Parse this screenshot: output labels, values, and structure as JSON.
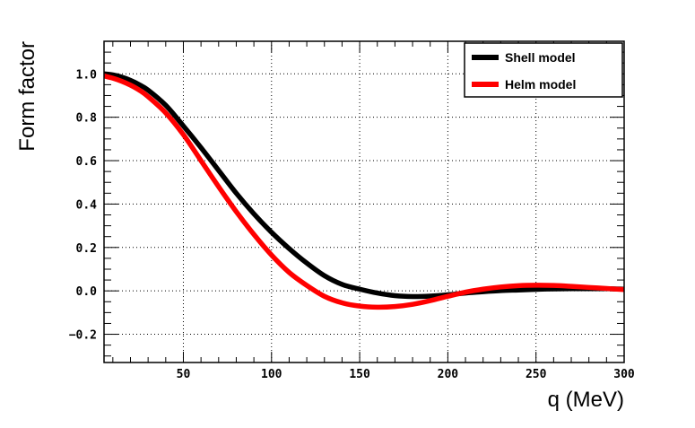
{
  "chart_data": {
    "type": "line",
    "title": "",
    "xlabel": "q (MeV)",
    "ylabel": "Form factor",
    "xlim": [
      5,
      300
    ],
    "ylim": [
      -0.33,
      1.15
    ],
    "grid": true,
    "legend_placement": "top-right",
    "x_ticks": [
      50,
      100,
      150,
      200,
      250,
      300
    ],
    "x_tick_labels": [
      "50",
      "100",
      "150",
      "200",
      "250",
      "300"
    ],
    "y_ticks": [
      -0.2,
      0.0,
      0.2,
      0.4,
      0.6,
      0.8,
      1.0
    ],
    "y_tick_labels": [
      "−0.2",
      "0.0",
      "0.2",
      "0.4",
      "0.6",
      "0.8",
      "1.0"
    ],
    "series": [
      {
        "name": "Shell model",
        "color": "#000000",
        "x": [
          5,
          10,
          15,
          20,
          25,
          30,
          40,
          50,
          60,
          70,
          80,
          90,
          100,
          110,
          120,
          130,
          140,
          150,
          160,
          170,
          180,
          190,
          200,
          210,
          220,
          230,
          240,
          250,
          260,
          270,
          280,
          290,
          300
        ],
        "y": [
          1.0,
          0.995,
          0.985,
          0.97,
          0.95,
          0.925,
          0.855,
          0.76,
          0.66,
          0.555,
          0.45,
          0.355,
          0.27,
          0.195,
          0.128,
          0.07,
          0.03,
          0.008,
          -0.01,
          -0.022,
          -0.026,
          -0.024,
          -0.018,
          -0.01,
          -0.004,
          0.001,
          0.004,
          0.007,
          0.009,
          0.01,
          0.01,
          0.01,
          0.008
        ]
      },
      {
        "name": "Helm model",
        "color": "#ff0000",
        "x": [
          5,
          10,
          15,
          20,
          25,
          30,
          40,
          50,
          60,
          70,
          80,
          90,
          100,
          110,
          120,
          130,
          140,
          150,
          160,
          170,
          180,
          190,
          200,
          210,
          220,
          230,
          240,
          250,
          260,
          270,
          280,
          290,
          300
        ],
        "y": [
          0.99,
          0.98,
          0.966,
          0.948,
          0.925,
          0.895,
          0.82,
          0.72,
          0.6,
          0.48,
          0.365,
          0.26,
          0.165,
          0.085,
          0.025,
          -0.025,
          -0.055,
          -0.07,
          -0.075,
          -0.072,
          -0.062,
          -0.045,
          -0.025,
          -0.006,
          0.008,
          0.018,
          0.024,
          0.026,
          0.025,
          0.021,
          0.016,
          0.011,
          0.006
        ]
      }
    ]
  }
}
